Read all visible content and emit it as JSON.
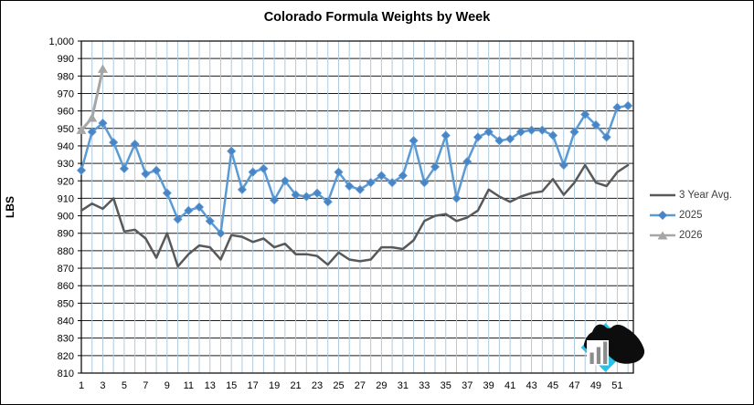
{
  "chart_data": {
    "type": "line",
    "title": "Colorado Formula Weights by Week",
    "ylabel": "LBS",
    "ylim": [
      810,
      1000
    ],
    "ytick_step": 10,
    "ytick_labels": [
      "1,000",
      "990",
      "980",
      "970",
      "960",
      "950",
      "940",
      "930",
      "920",
      "910",
      "900",
      "890",
      "880",
      "870",
      "860",
      "850",
      "840",
      "830",
      "820",
      "810"
    ],
    "x_max": 52,
    "xtick_labels": [
      "1",
      "3",
      "5",
      "7",
      "9",
      "11",
      "13",
      "15",
      "17",
      "19",
      "21",
      "23",
      "25",
      "27",
      "29",
      "31",
      "33",
      "35",
      "37",
      "39",
      "41",
      "43",
      "45",
      "47",
      "49",
      "51"
    ],
    "grid": {
      "horizontal_color": "#1c1c1c",
      "vertical_color": "#aecadf",
      "border_color": "#000000",
      "axis_text_color": "#000000"
    },
    "legend_position": "right",
    "series": [
      {
        "name": "3 Year Avg.",
        "color": "#595959",
        "marker": "none",
        "start_week": 1,
        "values": [
          903,
          907,
          904,
          910,
          891,
          892,
          887,
          876,
          890,
          871,
          878,
          883,
          882,
          875,
          889,
          888,
          885,
          887,
          882,
          884,
          878,
          878,
          877,
          872,
          879,
          875,
          874,
          875,
          882,
          882,
          881,
          886,
          897,
          900,
          901,
          897,
          899,
          903,
          915,
          911,
          908,
          911,
          913,
          914,
          921,
          912,
          919,
          929,
          919,
          917,
          925,
          929
        ]
      },
      {
        "name": "2025",
        "color": "#5b9bd5",
        "marker": "diamond",
        "marker_color": "#4a84c4",
        "start_week": 1,
        "values": [
          926,
          948,
          953,
          942,
          927,
          941,
          924,
          926,
          913,
          898,
          903,
          905,
          897,
          890,
          937,
          915,
          925,
          927,
          909,
          920,
          912,
          911,
          913,
          908,
          925,
          917,
          915,
          919,
          923,
          919,
          923,
          943,
          919,
          928,
          946,
          910,
          931,
          945,
          948,
          943,
          944,
          948,
          949,
          949,
          946,
          929,
          948,
          958,
          952,
          945,
          962,
          963
        ]
      },
      {
        "name": "2026",
        "color": "#a6a6a6",
        "marker": "triangle",
        "marker_color": "#a6a6a6",
        "start_week": 1,
        "values": [
          949,
          956,
          984
        ]
      }
    ],
    "logo": {
      "diamond_color": "#29c3e6",
      "head_color": "#0d0d0d",
      "panel_color": "#ffffff",
      "bar_color": "#8c8c8c"
    }
  }
}
